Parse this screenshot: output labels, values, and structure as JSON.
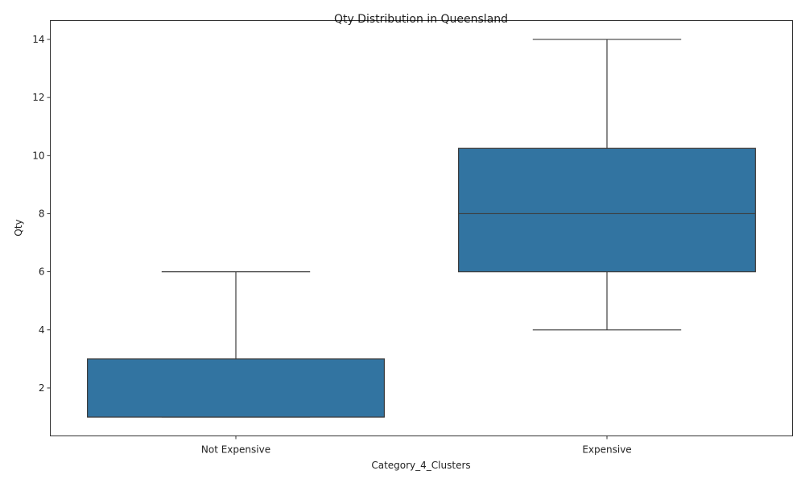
{
  "chart_data": {
    "type": "box",
    "title": "Qty Distribution in Queensland",
    "xlabel": "Category_4_Clusters",
    "ylabel": "Qty",
    "categories": [
      "Not Expensive",
      "Expensive"
    ],
    "boxes": [
      {
        "category": "Not Expensive",
        "whisker_low": 1,
        "q1": 1,
        "median": 1,
        "q3": 3,
        "whisker_high": 6
      },
      {
        "category": "Expensive",
        "whisker_low": 4,
        "q1": 6,
        "median": 8,
        "q3": 10.25,
        "whisker_high": 14
      }
    ],
    "ylim": [
      0.35,
      14.65
    ],
    "yticks": [
      2,
      4,
      6,
      8,
      10,
      12,
      14
    ],
    "grid": false,
    "colors": {
      "box_fill": "#3274a1",
      "line": "#3d3d3d",
      "axis": "#000000"
    }
  }
}
